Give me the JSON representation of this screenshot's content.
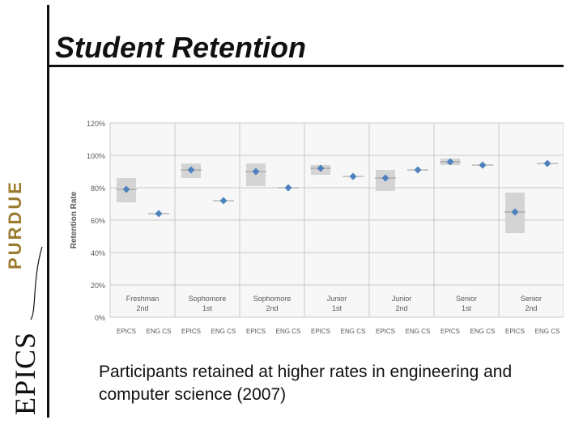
{
  "slide": {
    "title": "Student Retention",
    "caption": "Participants retained at higher rates in engineering and computer science (2007)"
  },
  "logo": {
    "purdue_text": "PURDUE",
    "epics_text": "EPICS"
  },
  "colors": {
    "marker": "#4f81bd",
    "box": "#d4d4d4",
    "grid": "#c8c8c8",
    "panel": "#f7f7f7",
    "text": "#595959"
  },
  "chart_data": {
    "type": "scatter",
    "title": "",
    "xlabel": "",
    "ylabel": "Retention Rate",
    "ylim": [
      0,
      120
    ],
    "yticks": [
      "0%",
      "20%",
      "40%",
      "60%",
      "80%",
      "100%",
      "120%"
    ],
    "grid": true,
    "groups": [
      {
        "label_line1": "Freshman",
        "label_line2": "2nd",
        "categories": [
          "EPICS",
          "ENG CS"
        ],
        "values": [
          79,
          64
        ],
        "epics_box": [
          71,
          86
        ]
      },
      {
        "label_line1": "Sophomore",
        "label_line2": "1st",
        "categories": [
          "EPICS",
          "ENG CS"
        ],
        "values": [
          91,
          72
        ],
        "epics_box": [
          86,
          95
        ]
      },
      {
        "label_line1": "Sophomore",
        "label_line2": "2nd",
        "categories": [
          "EPICS",
          "ENG CS"
        ],
        "values": [
          90,
          80
        ],
        "epics_box": [
          81,
          95
        ]
      },
      {
        "label_line1": "Junior",
        "label_line2": "1st",
        "categories": [
          "EPICS",
          "ENG CS"
        ],
        "values": [
          92,
          87
        ],
        "epics_box": [
          88,
          94
        ]
      },
      {
        "label_line1": "Junior",
        "label_line2": "2nd",
        "categories": [
          "EPICS",
          "ENG CS"
        ],
        "values": [
          86,
          91
        ],
        "epics_box": [
          78,
          91
        ]
      },
      {
        "label_line1": "Senior",
        "label_line2": "1st",
        "categories": [
          "EPICS",
          "ENG CS"
        ],
        "values": [
          96,
          94
        ],
        "epics_box": [
          94,
          98
        ]
      },
      {
        "label_line1": "Senior",
        "label_line2": "2nd",
        "categories": [
          "EPICS",
          "ENG CS"
        ],
        "values": [
          65,
          95
        ],
        "epics_box": [
          52,
          77
        ]
      }
    ]
  }
}
